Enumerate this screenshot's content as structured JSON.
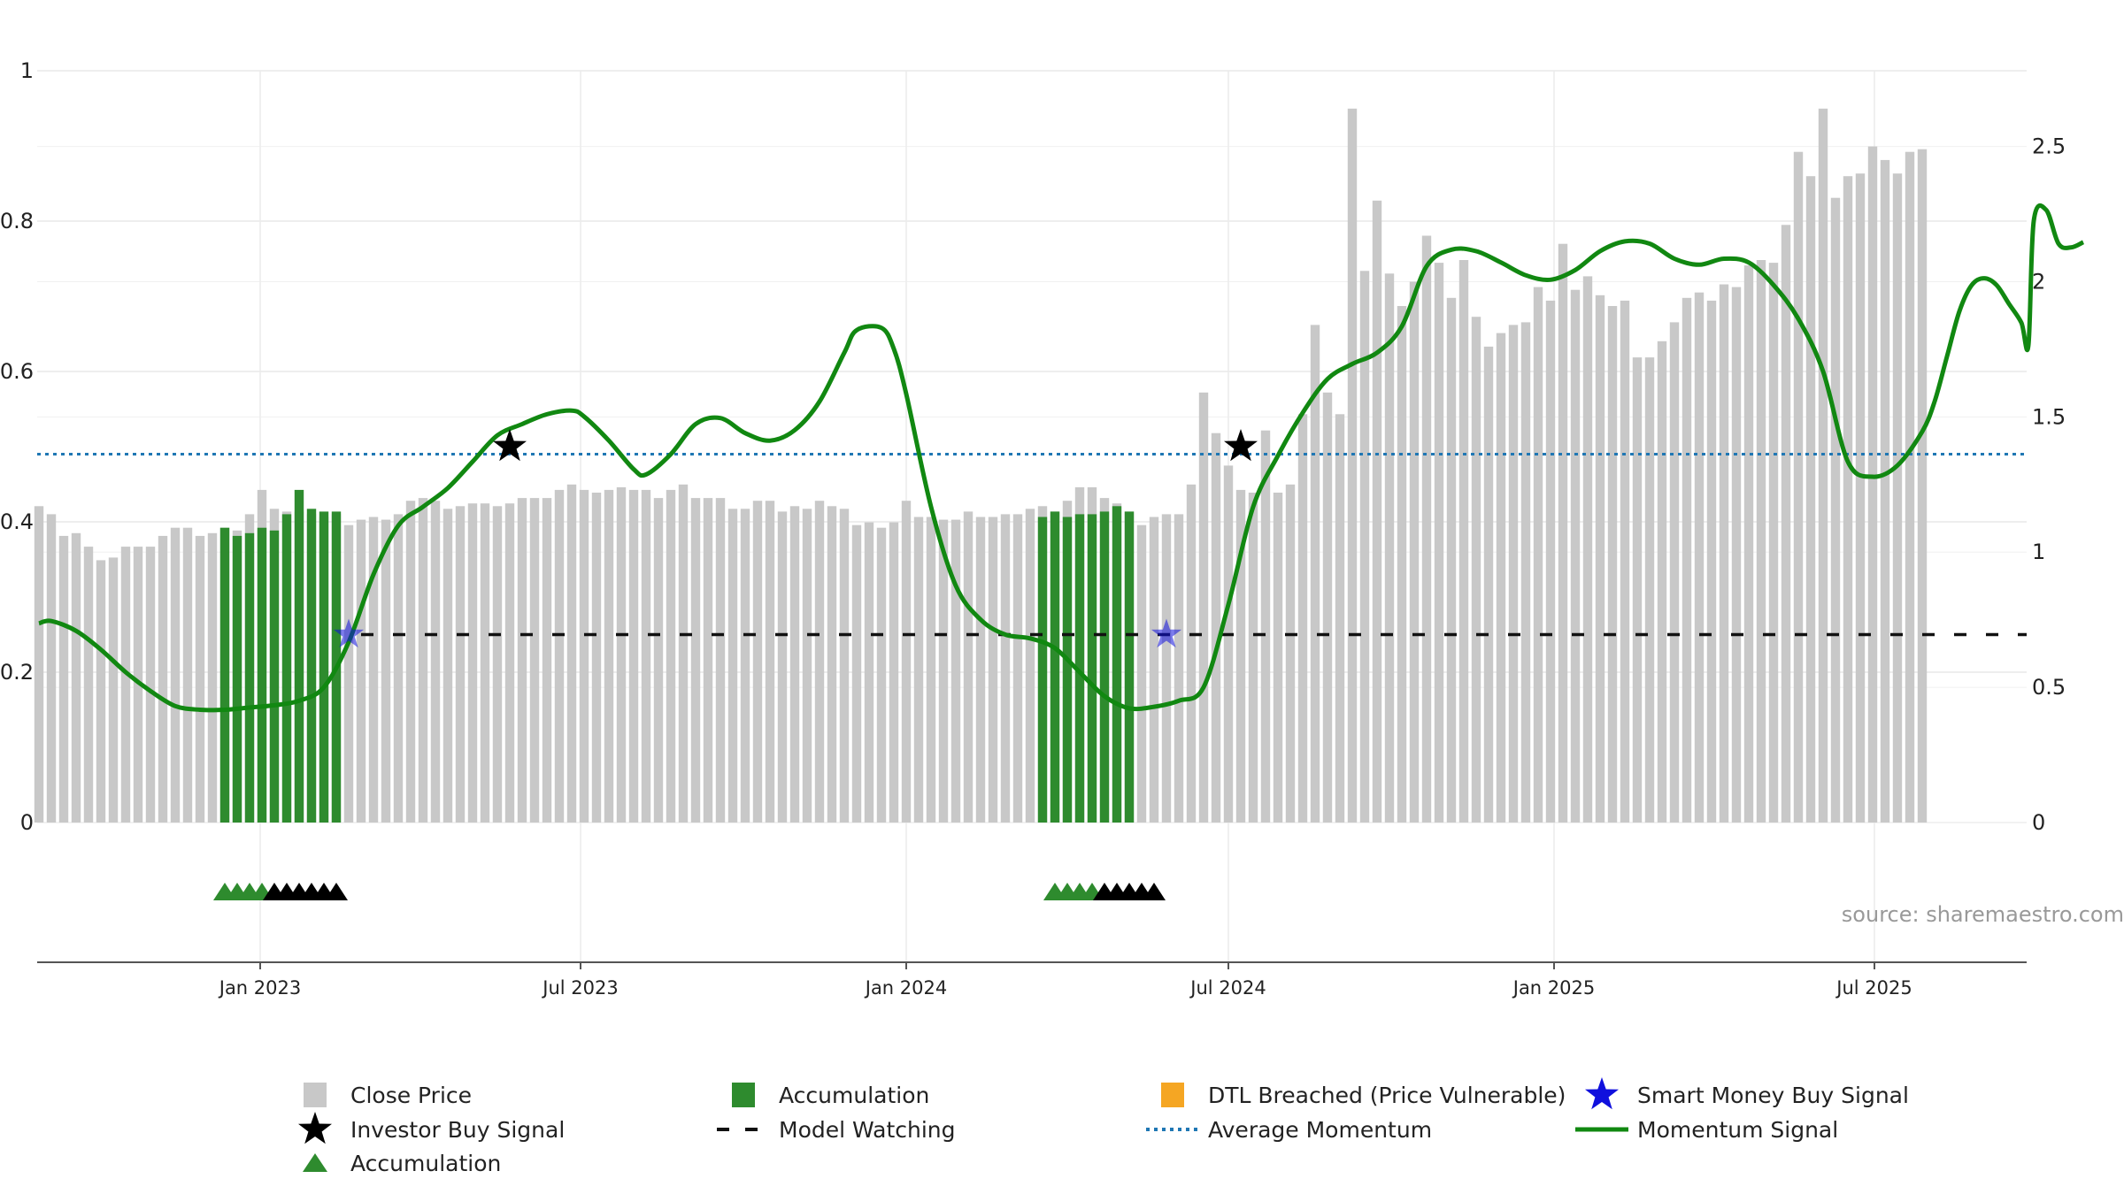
{
  "chart_data": {
    "type": "bar",
    "source": "source: sharemaestro.com",
    "left_axis": {
      "ticks": [
        "0",
        "0.2",
        "0.4",
        "0.6",
        "0.8",
        "1"
      ],
      "range": [
        0,
        1
      ]
    },
    "right_axis": {
      "ticks": [
        "0",
        "0.5",
        "1",
        "1.5",
        "2",
        "2.5"
      ],
      "range": [
        0,
        2.78
      ]
    },
    "x_axis": {
      "ticks": [
        "Jan 2023",
        "Jul 2023",
        "Jan 2024",
        "Jul 2024",
        "Jan 2025",
        "Jul 2025"
      ],
      "tick_dates": [
        "2023-01-01",
        "2023-07-01",
        "2024-01-01",
        "2024-07-01",
        "2025-01-01",
        "2025-07-01"
      ],
      "range": [
        "2022-08-28",
        "2025-09-25"
      ]
    },
    "close_price": {
      "start": "2022-08-29",
      "interval_days": 7,
      "values": [
        1.17,
        1.14,
        1.06,
        1.07,
        1.02,
        0.97,
        0.98,
        1.02,
        1.02,
        1.02,
        1.06,
        1.09,
        1.09,
        1.06,
        1.07,
        1.09,
        1.08,
        1.14,
        1.23,
        1.16,
        1.15,
        1.15,
        1.14,
        1.13,
        1.14,
        1.1,
        1.12,
        1.13,
        1.12,
        1.14,
        1.19,
        1.2,
        1.19,
        1.16,
        1.17,
        1.18,
        1.18,
        1.17,
        1.18,
        1.2,
        1.2,
        1.2,
        1.23,
        1.25,
        1.23,
        1.22,
        1.23,
        1.24,
        1.23,
        1.23,
        1.2,
        1.23,
        1.25,
        1.2,
        1.2,
        1.2,
        1.16,
        1.16,
        1.19,
        1.19,
        1.15,
        1.17,
        1.16,
        1.19,
        1.17,
        1.16,
        1.1,
        1.11,
        1.09,
        1.11,
        1.19,
        1.13,
        1.13,
        1.12,
        1.12,
        1.15,
        1.13,
        1.13,
        1.14,
        1.14,
        1.16,
        1.17,
        1.15,
        1.19,
        1.24,
        1.24,
        1.2,
        1.18,
        1.15,
        1.1,
        1.13,
        1.14,
        1.14,
        1.25,
        1.59,
        1.44,
        1.32,
        1.23,
        1.22,
        1.45,
        1.22,
        1.25,
        1.51,
        1.84,
        1.59,
        1.51,
        2.64,
        2.04,
        2.3,
        2.03,
        1.91,
        2.0,
        2.17,
        2.07,
        1.94,
        2.08,
        1.87,
        1.76,
        1.81,
        1.84,
        1.85,
        1.98,
        1.93,
        2.14,
        1.97,
        2.02,
        1.95,
        1.91,
        1.93,
        1.72,
        1.72,
        1.78,
        1.85,
        1.94,
        1.96,
        1.93,
        1.99,
        1.98,
        2.06,
        2.08,
        2.07,
        2.21,
        2.48,
        2.39,
        2.64,
        2.31,
        2.39,
        2.4,
        2.5,
        2.45,
        2.4,
        2.48,
        2.49
      ]
    },
    "accumulation_bars": [
      {
        "start": "2022-12-12",
        "count": 10,
        "values": [
          1.09,
          1.06,
          1.07,
          1.09,
          1.08,
          1.14,
          1.23,
          1.16,
          1.15,
          1.15
        ]
      },
      {
        "start": "2024-03-18",
        "count": 8,
        "values": [
          1.13,
          1.15,
          1.13,
          1.14,
          1.14,
          1.15,
          1.17,
          1.15
        ]
      }
    ],
    "momentum_signal": [
      [
        "2022-08-29",
        0.265
      ],
      [
        "2022-09-05",
        0.268
      ],
      [
        "2022-09-19",
        0.255
      ],
      [
        "2022-10-03",
        0.23
      ],
      [
        "2022-10-17",
        0.2
      ],
      [
        "2022-10-31",
        0.175
      ],
      [
        "2022-11-14",
        0.155
      ],
      [
        "2022-11-28",
        0.15
      ],
      [
        "2022-12-12",
        0.15
      ],
      [
        "2022-12-26",
        0.153
      ],
      [
        "2023-01-09",
        0.156
      ],
      [
        "2023-01-23",
        0.162
      ],
      [
        "2023-02-06",
        0.18
      ],
      [
        "2023-02-20",
        0.24
      ],
      [
        "2023-03-06",
        0.33
      ],
      [
        "2023-03-20",
        0.395
      ],
      [
        "2023-04-03",
        0.42
      ],
      [
        "2023-04-17",
        0.445
      ],
      [
        "2023-05-01",
        0.48
      ],
      [
        "2023-05-15",
        0.515
      ],
      [
        "2023-05-29",
        0.53
      ],
      [
        "2023-06-12",
        0.543
      ],
      [
        "2023-06-26",
        0.548
      ],
      [
        "2023-07-03",
        0.54
      ],
      [
        "2023-07-17",
        0.508
      ],
      [
        "2023-07-31",
        0.47
      ],
      [
        "2023-08-07",
        0.463
      ],
      [
        "2023-08-21",
        0.49
      ],
      [
        "2023-09-04",
        0.53
      ],
      [
        "2023-09-18",
        0.538
      ],
      [
        "2023-10-02",
        0.518
      ],
      [
        "2023-10-16",
        0.508
      ],
      [
        "2023-10-30",
        0.522
      ],
      [
        "2023-11-13",
        0.56
      ],
      [
        "2023-11-27",
        0.625
      ],
      [
        "2023-12-04",
        0.655
      ],
      [
        "2023-12-18",
        0.658
      ],
      [
        "2023-12-25",
        0.63
      ],
      [
        "2024-01-01",
        0.57
      ],
      [
        "2024-01-15",
        0.42
      ],
      [
        "2024-01-29",
        0.315
      ],
      [
        "2024-02-12",
        0.27
      ],
      [
        "2024-02-26",
        0.25
      ],
      [
        "2024-03-11",
        0.245
      ],
      [
        "2024-03-25",
        0.232
      ],
      [
        "2024-04-08",
        0.2
      ],
      [
        "2024-04-22",
        0.168
      ],
      [
        "2024-05-06",
        0.152
      ],
      [
        "2024-05-20",
        0.154
      ],
      [
        "2024-06-03",
        0.162
      ],
      [
        "2024-06-17",
        0.18
      ],
      [
        "2024-07-01",
        0.29
      ],
      [
        "2024-07-15",
        0.42
      ],
      [
        "2024-07-29",
        0.488
      ],
      [
        "2024-08-12",
        0.545
      ],
      [
        "2024-08-26",
        0.59
      ],
      [
        "2024-09-09",
        0.61
      ],
      [
        "2024-09-23",
        0.625
      ],
      [
        "2024-10-07",
        0.66
      ],
      [
        "2024-10-21",
        0.74
      ],
      [
        "2024-11-04",
        0.762
      ],
      [
        "2024-11-18",
        0.76
      ],
      [
        "2024-12-02",
        0.745
      ],
      [
        "2024-12-16",
        0.728
      ],
      [
        "2024-12-30",
        0.722
      ],
      [
        "2025-01-13",
        0.735
      ],
      [
        "2025-01-27",
        0.76
      ],
      [
        "2025-02-10",
        0.773
      ],
      [
        "2025-02-24",
        0.77
      ],
      [
        "2025-03-10",
        0.75
      ],
      [
        "2025-03-24",
        0.742
      ],
      [
        "2025-04-07",
        0.75
      ],
      [
        "2025-04-21",
        0.745
      ],
      [
        "2025-05-05",
        0.715
      ],
      [
        "2025-05-19",
        0.67
      ],
      [
        "2025-06-02",
        0.6
      ],
      [
        "2025-06-16",
        0.48
      ],
      [
        "2025-06-30",
        0.46
      ],
      [
        "2025-07-14",
        0.475
      ],
      [
        "2025-07-28",
        0.52
      ],
      [
        "2025-08-04",
        0.56
      ],
      [
        "2025-08-11",
        0.62
      ],
      [
        "2025-08-18",
        0.68
      ],
      [
        "2025-08-25",
        0.715
      ],
      [
        "2025-09-01",
        0.724
      ],
      [
        "2025-09-08",
        0.715
      ],
      [
        "2025-09-15",
        0.69
      ],
      [
        "2025-09-22",
        0.665
      ],
      [
        "2025-09-26",
        0.635
      ],
      [
        "2025-09-29",
        0.8
      ],
      [
        "2025-10-06",
        0.815
      ],
      [
        "2025-10-13",
        0.77
      ],
      [
        "2025-10-20",
        0.765
      ],
      [
        "2025-10-27",
        0.772
      ]
    ],
    "average_momentum": 0.49,
    "model_watching": [
      {
        "from": "2023-02-27",
        "to": "2025-09-25",
        "y": 0.25
      }
    ],
    "investor_buy_signals": [
      {
        "date": "2023-05-22",
        "y": 0.5
      },
      {
        "date": "2024-07-08",
        "y": 0.5
      }
    ],
    "smart_money_buy_signals": [
      {
        "date": "2023-02-20",
        "y": 0.25
      },
      {
        "date": "2024-05-27",
        "y": 0.25
      }
    ],
    "accumulation_markers": [
      {
        "date": "2022-12-12",
        "color": "green"
      },
      {
        "date": "2022-12-19",
        "color": "green"
      },
      {
        "date": "2022-12-26",
        "color": "green"
      },
      {
        "date": "2023-01-02",
        "color": "green"
      },
      {
        "date": "2023-01-09",
        "color": "black"
      },
      {
        "date": "2023-01-16",
        "color": "black"
      },
      {
        "date": "2023-01-23",
        "color": "black"
      },
      {
        "date": "2023-01-30",
        "color": "black"
      },
      {
        "date": "2023-02-06",
        "color": "black"
      },
      {
        "date": "2023-02-13",
        "color": "black"
      },
      {
        "date": "2024-03-25",
        "color": "green"
      },
      {
        "date": "2024-04-01",
        "color": "green"
      },
      {
        "date": "2024-04-08",
        "color": "green"
      },
      {
        "date": "2024-04-15",
        "color": "green"
      },
      {
        "date": "2024-04-22",
        "color": "black"
      },
      {
        "date": "2024-04-29",
        "color": "black"
      },
      {
        "date": "2024-05-06",
        "color": "black"
      },
      {
        "date": "2024-05-13",
        "color": "black"
      },
      {
        "date": "2024-05-20",
        "color": "black"
      }
    ],
    "legend": [
      {
        "label": "Close Price",
        "symbol": "gray-square"
      },
      {
        "label": "Accumulation",
        "symbol": "green-square"
      },
      {
        "label": "DTL Breached (Price Vulnerable)",
        "symbol": "orange-square"
      },
      {
        "label": "Smart Money Buy Signal",
        "symbol": "blue-star"
      },
      {
        "label": "Investor Buy Signal",
        "symbol": "black-star"
      },
      {
        "label": "Model Watching",
        "symbol": "black-dash"
      },
      {
        "label": "Average Momentum",
        "symbol": "blue-dotted"
      },
      {
        "label": "Momentum Signal",
        "symbol": "green-line"
      },
      {
        "label": "Accumulation",
        "symbol": "green-triangle"
      }
    ],
    "colors": {
      "close_price": "#c8c8c8",
      "accumulation": "#2e8b2e",
      "dtl_breached": "#f5a623",
      "smart_money": "#1010dd",
      "investor": "#000000",
      "average_momentum": "#1f77b4",
      "momentum": "#118811"
    }
  }
}
